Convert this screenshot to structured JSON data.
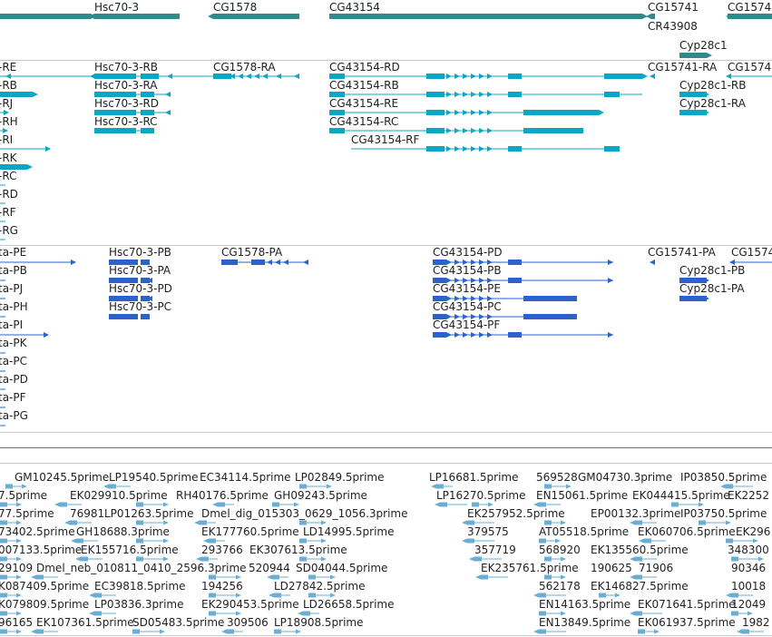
{
  "colors": {
    "gene": "#2f8b8b",
    "transcript_main": "#0aa7c5",
    "transcript_cds": "#2a63c9",
    "est": "#6aaed6",
    "separator": "#c8c8c8",
    "divider_purple": "#7a5aa0"
  },
  "track_genes": {
    "labels": [
      "Hsc70-3",
      "CG1578",
      "CG43154",
      "CG15741",
      "CR43908",
      "Cyp28c1",
      "CG1574"
    ]
  },
  "track_transcripts": {
    "labels": [
      "-RE",
      "-RB",
      "-RJ",
      "-RH",
      "-RI",
      "-RK",
      "-RC",
      "-RD",
      "-RF",
      "-RG",
      "Hsc70-3-RB",
      "Hsc70-3-RA",
      "Hsc70-3-RD",
      "Hsc70-3-RC",
      "CG1578-RA",
      "CG43154-RD",
      "CG43154-RB",
      "CG43154-RE",
      "CG43154-RC",
      "CG43154-RF",
      "CG15741-RA",
      "CG1574",
      "Cyp28c1-RB",
      "Cyp28c1-RA"
    ]
  },
  "track_cds": {
    "labels": [
      "ta-PE",
      "ta-PB",
      "ta-PJ",
      "ta-PH",
      "ta-PI",
      "ta-PK",
      "ta-PC",
      "ta-PD",
      "ta-PF",
      "ta-PG",
      "Hsc70-3-PB",
      "Hsc70-3-PA",
      "Hsc70-3-PD",
      "Hsc70-3-PC",
      "CG1578-PA",
      "CG43154-PD",
      "CG43154-PB",
      "CG43154-PE",
      "CG43154-PC",
      "CG43154-PF",
      "CG15741-PA",
      "CG1574",
      "Cyp28c1-PB",
      "Cyp28c1-PA"
    ]
  },
  "track_est": {
    "labels": [
      "GM10245.5prime",
      "LP19540.5prime",
      "EC34114.5prime",
      "LP02849.5prime",
      "LP16681.5prime",
      "569528",
      "GM04730.3prime",
      "IP03850.5prime",
      "7.5prime",
      "EK029910.5prime",
      "RH40176.5prime",
      "GH09243.5prime",
      "LP16270.5prime",
      "EN15061.5prime",
      "EK044415.5prime",
      "EK2252",
      "77.5prime",
      "76981",
      "LP01263.5prime",
      "Dmel_dig_015303_0629_1056.3prime",
      "EK257952.5prime",
      "EP00132.3prime",
      "IP03750.5prime",
      "73402.5prime",
      "GH18688.3prime",
      "EK177760.5prime",
      "LD14995.5prime",
      "379575",
      "AT05518.5prime",
      "EK060706.5prime",
      "EK296",
      "007133.5prime",
      "EK155716.5prime",
      "293766",
      "EK307613.5prime",
      "357719",
      "568920",
      "EK135560.5prime",
      "348300",
      "29109",
      "Dmel_neb_010811_0410_2596.3prime",
      "520944",
      "SD04044.5prime",
      "EK235761.5prime",
      "190625",
      "71906",
      "90346",
      "K087409.5prime",
      "EC39818.5prime",
      "194256",
      "LD27842.5prime",
      "562178",
      "EK146827.5prime",
      "10018",
      "K079809.5prime",
      "LP03836.3prime",
      "EK290453.5prime",
      "LD26658.5prime",
      "EN14163.5prime",
      "EK071641.5prime",
      "12049",
      "96165",
      "EK107361.5prime",
      "SD05483.5prime",
      "309506",
      "LP18908.5prime",
      "EN13849.5prime",
      "EK061937.5prime",
      "1982"
    ]
  }
}
